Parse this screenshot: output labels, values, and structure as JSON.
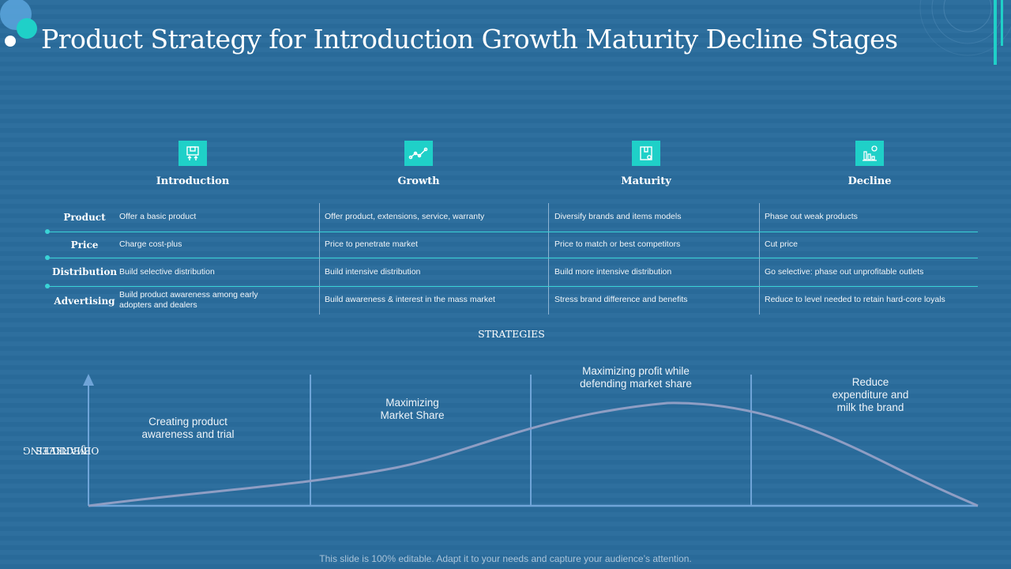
{
  "title": "Product Strategy for Introduction Growth Maturity Decline Stages",
  "stages": [
    {
      "label": "Introduction",
      "icon": "box-arrows-icon"
    },
    {
      "label": "Growth",
      "icon": "line-chart-icon"
    },
    {
      "label": "Maturity",
      "icon": "package-icon"
    },
    {
      "label": "Decline",
      "icon": "bar-chart-icon"
    }
  ],
  "rows": [
    {
      "label": "Product",
      "cells": [
        "Offer a basic product",
        "Offer product, extensions, service, warranty",
        "Diversify brands and items models",
        "Phase out weak products"
      ]
    },
    {
      "label": "Price",
      "cells": [
        "Charge cost-plus",
        "Price to penetrate market",
        "Price to match or best competitors",
        "Cut price"
      ]
    },
    {
      "label": "Distribution",
      "cells": [
        "Build selective distribution",
        "Build intensive distribution",
        "Build more intensive distribution",
        "Go selective: phase out unprofitable outlets"
      ]
    },
    {
      "label": "Advertising",
      "cells": [
        "Build product awareness among early adopters and dealers",
        "Build awareness & interest in the mass market",
        "Stress brand difference and benefits",
        "Reduce to level needed to retain hard-core loyals"
      ]
    }
  ],
  "strategies_label": "STRATEGIES",
  "y_axis_label": {
    "line1": "MARKETING",
    "line2": "OBJECTIVES"
  },
  "phases": [
    {
      "line1": "Creating product",
      "line2": "awareness and trial"
    },
    {
      "line1": "Maximizing",
      "line2": "Market Share"
    },
    {
      "line1": "Maximizing  profit while",
      "line2": "defending market share"
    },
    {
      "line1": "Reduce",
      "line2": "expenditure and",
      "line3": "milk the brand"
    }
  ],
  "colors": {
    "background": "#2a6c9c",
    "accent": "#1fd0c8",
    "curve": "#8f9ec4"
  },
  "footer": "This slide is 100% editable. Adapt it to your needs and capture your audience’s attention."
}
